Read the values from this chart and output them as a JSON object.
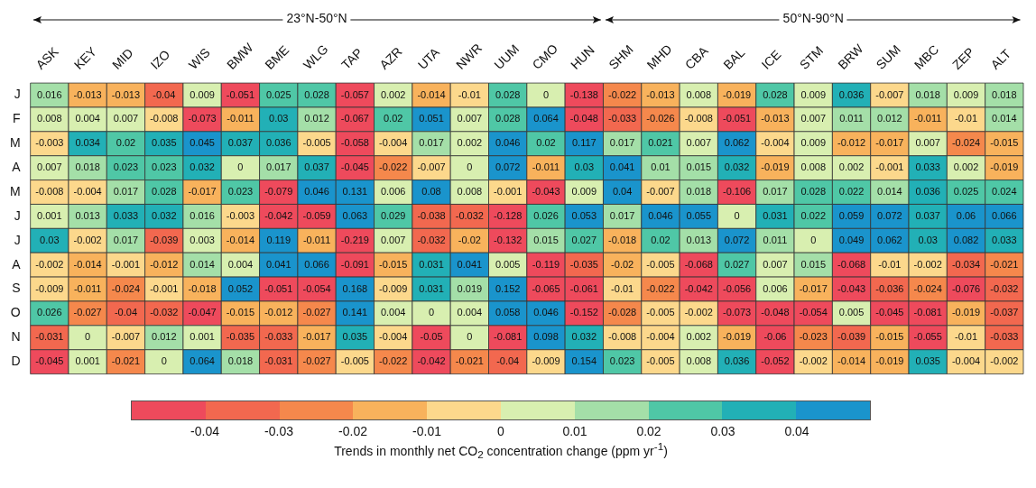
{
  "chart_data": {
    "type": "heatmap",
    "annotations": [
      "23°N-50°N",
      "50°N-90°N"
    ],
    "clabel": "Trends in monthly net CO$_{2}$ concentration  change (ppm yr$^{-1}$)",
    "categories": [
      "ASK",
      "KEY",
      "MID",
      "IZO",
      "WIS",
      "BMW",
      "BME",
      "WLG",
      "TAP",
      "AZR",
      "UTA",
      "NWR",
      "UUM",
      "CMO",
      "HUN",
      "SHM",
      "MHD",
      "CBA",
      "BAL",
      "ICE",
      "STM",
      "BRW",
      "SUM",
      "MBC",
      "ZEP",
      "ALT"
    ],
    "y_categories": [
      "J",
      "F",
      "M",
      "A",
      "M",
      "J",
      "J",
      "A",
      "S",
      "O",
      "N",
      "D"
    ],
    "cells": [
      [
        0.016,
        -0.013,
        -0.013,
        -0.04,
        0.009,
        -0.051,
        0.025,
        0.028,
        -0.057,
        0.002,
        -0.014,
        -0.01,
        0.028,
        0,
        -0.138,
        -0.022,
        -0.013,
        0.008,
        -0.019,
        0.028,
        0.009,
        0.036,
        -0.007,
        0.018,
        0.009,
        0.018
      ],
      [
        0.008,
        0.004,
        0.007,
        -0.008,
        -0.073,
        -0.011,
        0.03,
        0.012,
        -0.067,
        0.02,
        0.051,
        0.007,
        0.028,
        0.064,
        -0.048,
        -0.033,
        -0.026,
        -0.008,
        -0.051,
        -0.013,
        0.007,
        0.011,
        0.012,
        -0.011,
        -0.01,
        0.014
      ],
      [
        -0.003,
        0.034,
        0.02,
        0.035,
        0.045,
        0.037,
        0.036,
        -0.005,
        -0.058,
        -0.004,
        0.017,
        0.002,
        0.046,
        0.02,
        0.117,
        0.017,
        0.021,
        0.007,
        0.062,
        -0.004,
        0.009,
        -0.012,
        -0.017,
        0.007,
        -0.024,
        -0.015
      ],
      [
        0.007,
        0.018,
        0.023,
        0.023,
        0.032,
        0,
        0.017,
        0.037,
        -0.045,
        -0.022,
        -0.007,
        0,
        0.072,
        -0.011,
        0.03,
        0.041,
        0.01,
        0.015,
        0.032,
        -0.019,
        0.008,
        0.002,
        -0.001,
        0.033,
        0.002,
        -0.019
      ],
      [
        -0.008,
        -0.004,
        0.017,
        0.028,
        -0.017,
        0.023,
        -0.079,
        0.046,
        0.131,
        0.006,
        0.08,
        0.008,
        -0.001,
        -0.043,
        0.009,
        0.04,
        -0.007,
        0.018,
        -0.106,
        0.017,
        0.028,
        0.022,
        0.014,
        0.036,
        0.025,
        0.024
      ],
      [
        0.001,
        0.013,
        0.033,
        0.032,
        0.016,
        -0.003,
        -0.042,
        -0.059,
        0.063,
        0.029,
        -0.038,
        -0.032,
        -0.128,
        0.026,
        0.053,
        0.017,
        0.046,
        0.055,
        0,
        0.031,
        0.022,
        0.059,
        0.072,
        0.037,
        0.06,
        0.066
      ],
      [
        0.03,
        -0.002,
        0.017,
        -0.039,
        0.003,
        -0.014,
        0.119,
        -0.011,
        -0.219,
        0.007,
        -0.032,
        -0.02,
        -0.132,
        0.015,
        0.027,
        -0.018,
        0.02,
        0.013,
        0.072,
        0.011,
        0,
        0.049,
        0.062,
        0.03,
        0.082,
        0.033
      ],
      [
        -0.002,
        -0.014,
        -0.001,
        -0.012,
        0.014,
        0.004,
        0.041,
        0.066,
        -0.091,
        -0.015,
        0.031,
        0.041,
        0.005,
        -0.119,
        -0.035,
        -0.02,
        -0.005,
        -0.068,
        0.027,
        0.007,
        0.015,
        -0.068,
        -0.01,
        -0.002,
        -0.034,
        -0.021
      ],
      [
        -0.009,
        -0.011,
        -0.024,
        -0.001,
        -0.018,
        0.052,
        -0.051,
        -0.054,
        0.168,
        -0.009,
        0.031,
        0.019,
        0.152,
        -0.065,
        -0.061,
        -0.01,
        -0.022,
        -0.042,
        -0.056,
        0.006,
        -0.017,
        -0.043,
        -0.036,
        -0.024,
        -0.076,
        -0.032
      ],
      [
        0.026,
        -0.027,
        -0.04,
        -0.032,
        -0.047,
        -0.015,
        -0.012,
        -0.027,
        0.141,
        0.004,
        0,
        0.004,
        0.058,
        0.046,
        -0.152,
        -0.028,
        -0.005,
        -0.002,
        -0.073,
        -0.048,
        -0.054,
        0.005,
        -0.045,
        -0.081,
        -0.019,
        -0.037
      ],
      [
        -0.031,
        0,
        -0.007,
        0.012,
        0.001,
        -0.035,
        -0.033,
        -0.017,
        0.035,
        -0.004,
        -0.05,
        0,
        -0.081,
        0.098,
        0.032,
        -0.008,
        -0.004,
        0.002,
        -0.019,
        -0.06,
        -0.023,
        -0.039,
        -0.015,
        -0.055,
        -0.01,
        -0.033
      ],
      [
        -0.045,
        0.001,
        -0.021,
        0,
        0.064,
        0.018,
        -0.031,
        -0.027,
        -0.005,
        -0.022,
        -0.042,
        -0.021,
        -0.04,
        -0.009,
        0.154,
        0.023,
        -0.005,
        0.008,
        0.036,
        -0.052,
        -0.002,
        -0.014,
        -0.019,
        0.035,
        -0.004,
        -0.002
      ]
    ],
    "data_labels": true,
    "clim": [
      -0.05,
      0.05
    ],
    "cticks": [
      -0.04,
      -0.03,
      -0.02,
      -0.01,
      0,
      0.01,
      0.02,
      0.03,
      0.04
    ],
    "colors": [
      "#ee4a5c",
      "#f2684f",
      "#f5884c",
      "#f8b25c",
      "#fcd88c",
      "#d8efb0",
      "#a4dfa8",
      "#4fc7a6",
      "#22b0b6",
      "#1a94cc"
    ]
  }
}
